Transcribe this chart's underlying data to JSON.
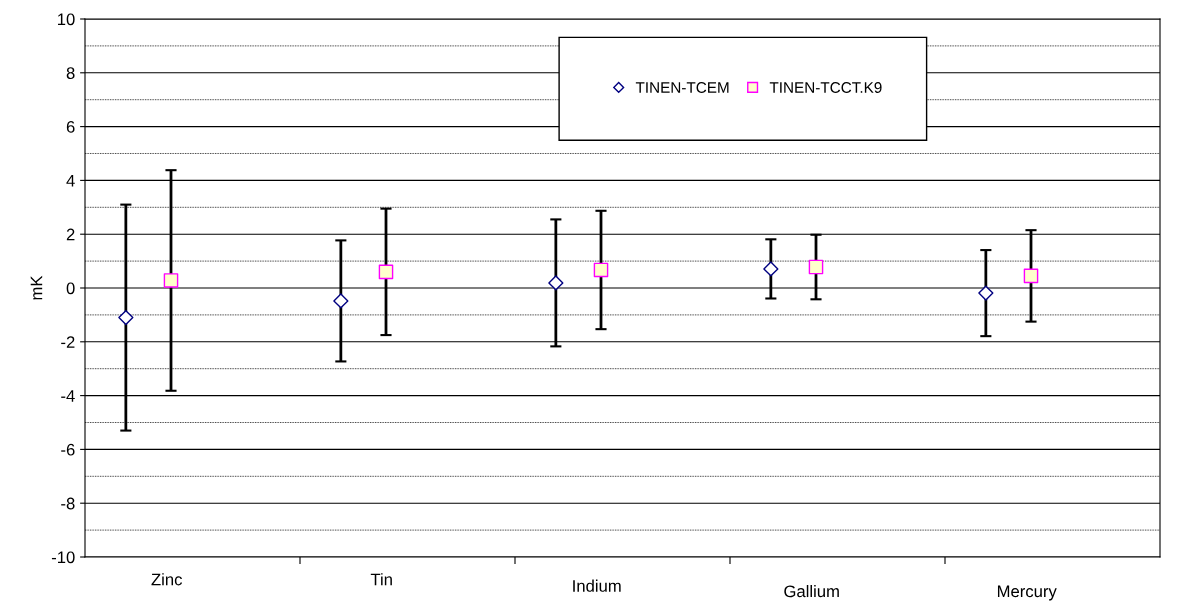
{
  "chart_data": {
    "type": "scatter",
    "ylabel": "mK",
    "categories": [
      "Zinc",
      "Tin",
      "Indium",
      "Gallium",
      "Mercury"
    ],
    "series": [
      {
        "name": "TINEN-TCEM",
        "color": "#000080",
        "marker": "diamond",
        "values": [
          -1.1,
          -0.48,
          0.19,
          0.71,
          -0.19
        ],
        "errors": [
          4.2,
          2.25,
          2.36,
          1.1,
          1.6
        ]
      },
      {
        "name": "TINEN-TCCT.K9",
        "color": "#ff00ff",
        "marker": "square",
        "values": [
          0.28,
          0.6,
          0.67,
          0.78,
          0.45
        ],
        "errors": [
          4.1,
          2.35,
          2.2,
          1.2,
          1.7
        ]
      }
    ],
    "ylim": [
      -10,
      10
    ],
    "yticks": [
      -10,
      -8,
      -6,
      -4,
      -2,
      0,
      2,
      4,
      6,
      8,
      10
    ],
    "grid": "y",
    "legend": "top right"
  }
}
